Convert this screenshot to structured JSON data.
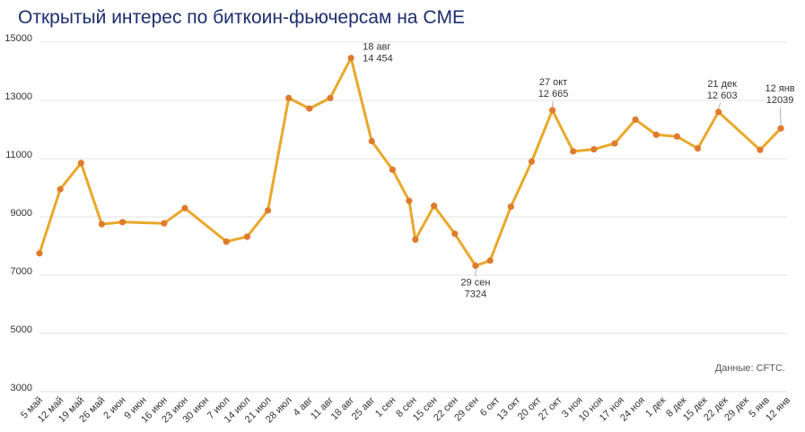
{
  "title": "Открытый интерес по биткоин-фьючерсам на CME",
  "source": "Данные: CFTC.",
  "colors": {
    "line": "#e9a82b",
    "marker": "#e07a2d",
    "grid": "#e3e3e3",
    "title": "#1c2e6e"
  },
  "chart_data": {
    "type": "line",
    "title": "Открытый интерес по биткоин-фьючерсам на CME",
    "ylim": [
      3000,
      15000
    ],
    "yticks": [
      3000,
      5000,
      7000,
      9000,
      11000,
      13000,
      15000
    ],
    "grid": true,
    "x_ticks": [
      "5 май",
      "12 май",
      "19 май",
      "26 май",
      "2 июн",
      "9 июн",
      "16 июн",
      "23 июн",
      "30 июн",
      "7 июл",
      "14 июл",
      "21 июл",
      "28 июл",
      "4 авг",
      "11 авг",
      "18 авг",
      "25 авг",
      "1 сен",
      "8 сен",
      "15 сен",
      "22 сен",
      "29 сен",
      "6 окт",
      "13 окт",
      "20 окт",
      "27 окт",
      "3 ноя",
      "10 ноя",
      "17 ноя",
      "24 ноя",
      "1 дек",
      "8 дек",
      "15 дек",
      "22 дек",
      "29 дек",
      "5 янв",
      "12 янв"
    ],
    "series": [
      {
        "points": [
          {
            "x": 0,
            "y": 7750
          },
          {
            "x": 1,
            "y": 9950
          },
          {
            "x": 2,
            "y": 10850
          },
          {
            "x": 3,
            "y": 8750
          },
          {
            "x": 4,
            "y": 8820
          },
          {
            "x": 6,
            "y": 8780
          },
          {
            "x": 7,
            "y": 9300
          },
          {
            "x": 9,
            "y": 8150
          },
          {
            "x": 10,
            "y": 8320
          },
          {
            "x": 11,
            "y": 9220
          },
          {
            "x": 12,
            "y": 13080
          },
          {
            "x": 13,
            "y": 12720
          },
          {
            "x": 14,
            "y": 13080
          },
          {
            "x": 15,
            "y": 14454
          },
          {
            "x": 16,
            "y": 11600
          },
          {
            "x": 17,
            "y": 10620
          },
          {
            "x": 17.8,
            "y": 9550
          },
          {
            "x": 18.1,
            "y": 8220
          },
          {
            "x": 19,
            "y": 9380
          },
          {
            "x": 20,
            "y": 8420
          },
          {
            "x": 21,
            "y": 7324
          },
          {
            "x": 21.7,
            "y": 7500
          },
          {
            "x": 22.7,
            "y": 9350
          },
          {
            "x": 23.7,
            "y": 10900
          },
          {
            "x": 24.7,
            "y": 12665
          },
          {
            "x": 25.7,
            "y": 11250
          },
          {
            "x": 26.7,
            "y": 11320
          },
          {
            "x": 27.7,
            "y": 11520
          },
          {
            "x": 28.7,
            "y": 12340
          },
          {
            "x": 29.7,
            "y": 11820
          },
          {
            "x": 30.7,
            "y": 11760
          },
          {
            "x": 31.7,
            "y": 11350
          },
          {
            "x": 32.7,
            "y": 12603
          },
          {
            "x": 34.7,
            "y": 11300
          },
          {
            "x": 35.7,
            "y": 12039
          }
        ]
      }
    ],
    "annotations": [
      {
        "label": "18 авг",
        "value": "14 454"
      },
      {
        "label": "29 сен",
        "value": "7324"
      },
      {
        "label": "27 окт",
        "value": "12 665"
      },
      {
        "label": "21 дек",
        "value": "12 603"
      },
      {
        "label": "12 янв",
        "value": "12039"
      }
    ]
  }
}
